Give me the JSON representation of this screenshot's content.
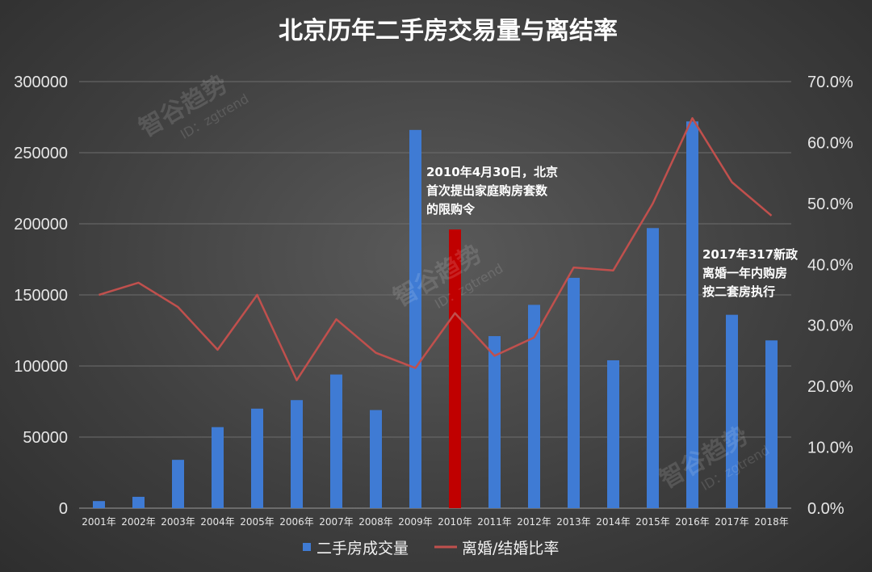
{
  "chart_data": {
    "type": "bar",
    "title": "北京历年二手房交易量与离结率",
    "categories": [
      "2001年",
      "2002年",
      "2003年",
      "2004年",
      "2005年",
      "2006年",
      "2007年",
      "2008年",
      "2009年",
      "2010年",
      "2011年",
      "2012年",
      "2013年",
      "2014年",
      "2015年",
      "2016年",
      "2017年",
      "2018年"
    ],
    "series": [
      {
        "name": "二手房成交量",
        "type": "bar",
        "axis": "left",
        "color": "#3f7bd4",
        "highlight_category": "2010年",
        "highlight_color": "#c00000",
        "values": [
          5000,
          8000,
          34000,
          57000,
          70000,
          76000,
          94000,
          69000,
          266000,
          196000,
          121000,
          143000,
          162000,
          104000,
          197000,
          272000,
          136000,
          118000
        ]
      },
      {
        "name": "离婚/结婚比率",
        "type": "line",
        "axis": "right",
        "color": "#c0504d",
        "values": [
          0.35,
          0.37,
          0.33,
          0.26,
          0.35,
          0.21,
          0.31,
          0.255,
          0.23,
          0.32,
          0.25,
          0.28,
          0.395,
          0.39,
          0.5,
          0.64,
          0.535,
          0.48
        ]
      }
    ],
    "y_left": {
      "min": 0,
      "max": 300000,
      "ticks": [
        "300000",
        "250000",
        "200000",
        "150000",
        "100000",
        "50000",
        "0"
      ]
    },
    "y_right": {
      "min": 0,
      "max": 0.7,
      "ticks": [
        "70.0%",
        "60.0%",
        "50.0%",
        "40.0%",
        "30.0%",
        "20.0%",
        "10.0%",
        "0.0%"
      ]
    },
    "grid": true,
    "legend_position": "bottom",
    "annotations": [
      {
        "lines": [
          "2010年4月30日，北京",
          "首次提出家庭购房套数",
          "的限购令"
        ]
      },
      {
        "lines": [
          "2017年317新政",
          "离婚一年内购房",
          "按二套房执行"
        ]
      }
    ]
  },
  "watermarks": [
    {
      "main": "智谷趋势",
      "sub": "ID：zgtrend"
    },
    {
      "main": "智谷趋势",
      "sub": "ID：zgtrend"
    },
    {
      "main": "智谷趋势",
      "sub": "ID：zgtrend"
    }
  ]
}
